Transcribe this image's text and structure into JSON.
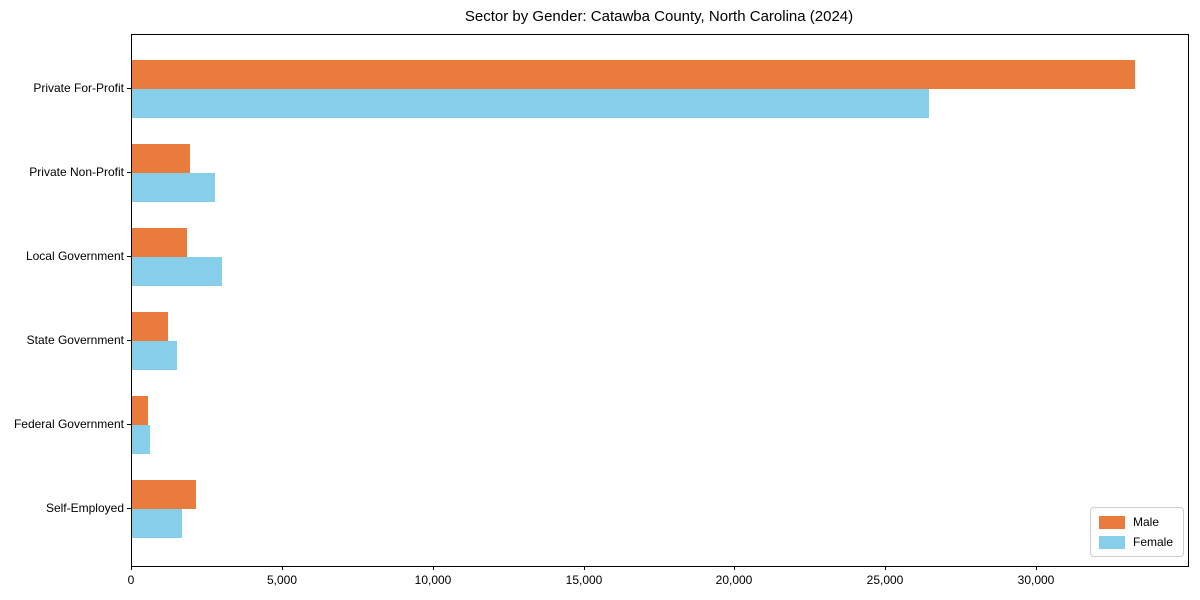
{
  "chart_data": {
    "type": "bar",
    "orientation": "horizontal",
    "title": "Sector by Gender: Catawba County, North Carolina (2024)",
    "categories": [
      "Private For-Profit",
      "Private Non-Profit",
      "Local Government",
      "State Government",
      "Federal Government",
      "Self-Employed"
    ],
    "series": [
      {
        "name": "Male",
        "color": "#E97C3C",
        "values": [
          33250,
          1920,
          1820,
          1190,
          530,
          2120
        ]
      },
      {
        "name": "Female",
        "color": "#87CEEB",
        "values": [
          26400,
          2750,
          2980,
          1490,
          600,
          1655
        ]
      }
    ],
    "x_ticks": [
      0,
      5000,
      10000,
      15000,
      20000,
      25000,
      30000
    ],
    "x_tick_labels": [
      "0",
      "5,000",
      "10,000",
      "15,000",
      "20,000",
      "25,000",
      "30,000"
    ],
    "xlim": [
      0,
      35000
    ],
    "xlabel": "",
    "ylabel": "",
    "grid": false,
    "legend_position": "lower right"
  }
}
